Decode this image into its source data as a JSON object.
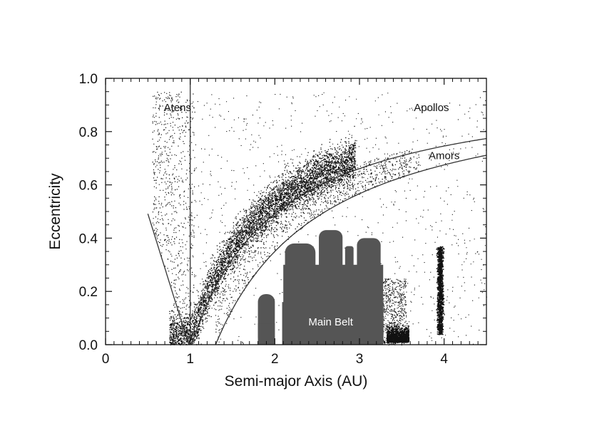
{
  "chart_data": {
    "type": "scatter",
    "title": "",
    "xlabel": "Semi-major Axis (AU)",
    "ylabel": "Eccentricity",
    "xlim": [
      0,
      4.5
    ],
    "ylim": [
      0,
      1.0
    ],
    "x_ticks": [
      0,
      1,
      2,
      3,
      4
    ],
    "y_ticks": [
      0.0,
      0.2,
      0.4,
      0.6,
      0.8,
      1.0
    ],
    "x_tick_labels": [
      "0",
      "1",
      "2",
      "3",
      "4"
    ],
    "y_tick_labels": [
      "0.0",
      "0.2",
      "0.4",
      "0.6",
      "0.8",
      "1.0"
    ],
    "x_minor_step": 0.1,
    "y_minor_step": 0.05,
    "grid": false,
    "boundaries": [
      {
        "relation": "e = 1 - a/0.983",
        "x_range": [
          0.5,
          1.0
        ]
      },
      {
        "relation": "a = 1.0",
        "y_range": [
          0.0,
          1.0
        ]
      },
      {
        "relation": "e = 1 - 1.017/a",
        "x_range": [
          1.0,
          4.5
        ]
      },
      {
        "relation": "e = 1 - 1.3/a",
        "x_range": [
          1.3,
          4.5
        ]
      }
    ],
    "regions": [
      {
        "label": "Atens",
        "x": 0.85,
        "y": 0.89
      },
      {
        "label": "Apollos",
        "x": 3.85,
        "y": 0.89
      },
      {
        "label": "Amors",
        "x": 4.0,
        "y": 0.71
      },
      {
        "label": "Main Belt",
        "x": 2.66,
        "y": 0.085
      }
    ],
    "point_groups": [
      {
        "group": "main-belt",
        "x_range": [
          2.1,
          3.3
        ],
        "e_range": [
          0.0,
          0.4
        ],
        "color": "#555555"
      },
      {
        "group": "hungaria",
        "x_range": [
          1.8,
          2.0
        ],
        "e_range": [
          0.02,
          0.18
        ],
        "color": "#555555"
      },
      {
        "group": "hilda",
        "x_range": [
          3.3,
          3.6
        ],
        "e_range": [
          0.0,
          0.18
        ],
        "color": "#111111"
      },
      {
        "group": "trojan",
        "x_range": [
          3.85,
          4.1
        ],
        "e_range": [
          0.02,
          0.37
        ],
        "color": "#111111"
      },
      {
        "group": "near-earth",
        "x_range": [
          0.5,
          4.5
        ],
        "e_range": [
          0.0,
          1.0
        ],
        "color": "#111111"
      }
    ],
    "colors": {
      "points": "#111111",
      "main_belt": "#555555",
      "boundary_lines": "#333333",
      "axes": "#111111"
    }
  }
}
